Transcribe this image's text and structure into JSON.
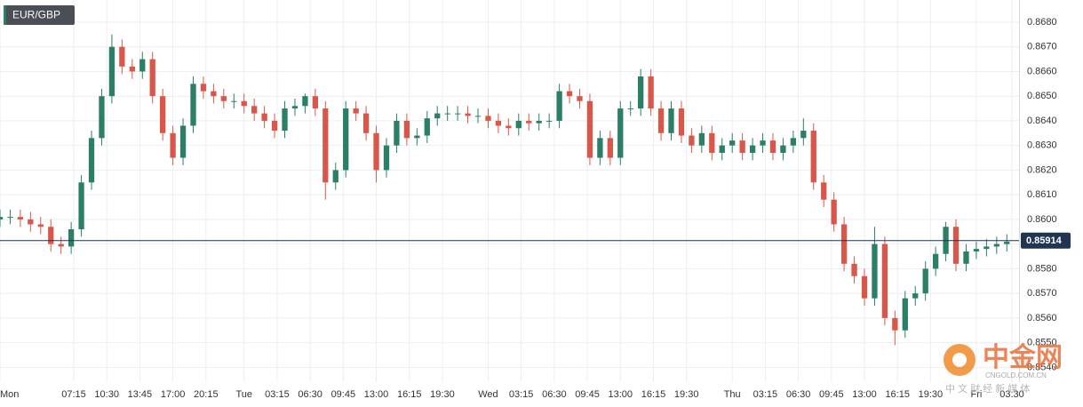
{
  "chart_data": {
    "type": "candlestick",
    "title": "EUR/GBP",
    "x": [
      0,
      1,
      2,
      3,
      4,
      5,
      6,
      7,
      8,
      9,
      10,
      11,
      12,
      13,
      14,
      15,
      16,
      17,
      18,
      19,
      20,
      21,
      22,
      23,
      24,
      25,
      26,
      27,
      28,
      29,
      30,
      31,
      32,
      33,
      34,
      35,
      36,
      37,
      38,
      39,
      40,
      41,
      42,
      43,
      44,
      45,
      46,
      47,
      48,
      49,
      50,
      51,
      52,
      53,
      54,
      55,
      56,
      57,
      58,
      59,
      60,
      61,
      62,
      63,
      64,
      65,
      66,
      67,
      68,
      69,
      70,
      71,
      72,
      73,
      74,
      75,
      76,
      77,
      78,
      79,
      80,
      81,
      82,
      83,
      84,
      85,
      86,
      87,
      88,
      89,
      90,
      91,
      92,
      93,
      94,
      95,
      96,
      97,
      98,
      99
    ],
    "open": [
      0.86,
      0.8601,
      0.8601,
      0.86,
      0.8598,
      0.8597,
      0.859,
      0.8589,
      0.8596,
      0.8615,
      0.8633,
      0.865,
      0.867,
      0.8662,
      0.866,
      0.8665,
      0.865,
      0.8635,
      0.8625,
      0.8638,
      0.8655,
      0.8652,
      0.865,
      0.8648,
      0.8648,
      0.8646,
      0.8643,
      0.864,
      0.8636,
      0.8645,
      0.8646,
      0.865,
      0.8645,
      0.8615,
      0.862,
      0.8645,
      0.8643,
      0.8635,
      0.862,
      0.863,
      0.864,
      0.8633,
      0.8634,
      0.8641,
      0.8643,
      0.8643,
      0.8643,
      0.8642,
      0.8642,
      0.864,
      0.8638,
      0.8637,
      0.864,
      0.8639,
      0.864,
      0.864,
      0.8652,
      0.865,
      0.8648,
      0.8625,
      0.8633,
      0.8625,
      0.8645,
      0.8645,
      0.8658,
      0.8645,
      0.8635,
      0.8645,
      0.8634,
      0.863,
      0.8635,
      0.8627,
      0.863,
      0.8632,
      0.8627,
      0.863,
      0.8632,
      0.8627,
      0.863,
      0.8633,
      0.8636,
      0.8615,
      0.8608,
      0.8598,
      0.8582,
      0.8577,
      0.8568,
      0.859,
      0.856,
      0.8555,
      0.8568,
      0.857,
      0.858,
      0.8586,
      0.8597,
      0.8582,
      0.8587,
      0.8588,
      0.8589,
      0.859
    ],
    "high": [
      0.8604,
      0.8604,
      0.8604,
      0.8603,
      0.8601,
      0.86,
      0.8593,
      0.8599,
      0.8618,
      0.8636,
      0.8653,
      0.8675,
      0.8673,
      0.8665,
      0.8668,
      0.8668,
      0.8653,
      0.8638,
      0.8641,
      0.8658,
      0.8658,
      0.8655,
      0.8653,
      0.8651,
      0.8651,
      0.8649,
      0.8646,
      0.8643,
      0.8648,
      0.8649,
      0.8651,
      0.8653,
      0.8648,
      0.8623,
      0.8648,
      0.8648,
      0.8646,
      0.8638,
      0.8633,
      0.8643,
      0.8643,
      0.8637,
      0.8644,
      0.8646,
      0.8646,
      0.8646,
      0.8646,
      0.8645,
      0.8645,
      0.8643,
      0.8641,
      0.8643,
      0.8643,
      0.8643,
      0.8643,
      0.8655,
      0.8655,
      0.8653,
      0.8651,
      0.8636,
      0.8636,
      0.8648,
      0.8648,
      0.8661,
      0.8661,
      0.8648,
      0.8648,
      0.8648,
      0.8637,
      0.8638,
      0.8638,
      0.8633,
      0.8635,
      0.8635,
      0.8633,
      0.8635,
      0.8635,
      0.8633,
      0.8636,
      0.8641,
      0.8639,
      0.8618,
      0.8611,
      0.8601,
      0.8585,
      0.858,
      0.8597,
      0.8593,
      0.8563,
      0.8571,
      0.8573,
      0.8583,
      0.8589,
      0.8599,
      0.86,
      0.859,
      0.8591,
      0.8592,
      0.8593,
      0.8594
    ],
    "low": [
      0.8597,
      0.8598,
      0.8597,
      0.8595,
      0.8594,
      0.8587,
      0.8586,
      0.8586,
      0.8593,
      0.8612,
      0.863,
      0.8647,
      0.8659,
      0.8657,
      0.8657,
      0.8647,
      0.8632,
      0.8622,
      0.8622,
      0.8635,
      0.8649,
      0.8647,
      0.8645,
      0.8645,
      0.8643,
      0.864,
      0.8637,
      0.8633,
      0.8633,
      0.8642,
      0.8643,
      0.8642,
      0.8608,
      0.8612,
      0.8617,
      0.864,
      0.8632,
      0.8615,
      0.8617,
      0.8627,
      0.863,
      0.863,
      0.8631,
      0.8638,
      0.864,
      0.864,
      0.8639,
      0.8639,
      0.8637,
      0.8635,
      0.8634,
      0.8634,
      0.8636,
      0.8636,
      0.8637,
      0.8637,
      0.8647,
      0.8645,
      0.8622,
      0.8622,
      0.8622,
      0.8622,
      0.8642,
      0.8642,
      0.8642,
      0.8632,
      0.8632,
      0.8631,
      0.8627,
      0.8627,
      0.8624,
      0.8624,
      0.8627,
      0.8624,
      0.8624,
      0.8627,
      0.8624,
      0.8624,
      0.8627,
      0.863,
      0.8612,
      0.8605,
      0.8595,
      0.8579,
      0.8574,
      0.8565,
      0.8565,
      0.8557,
      0.8549,
      0.8552,
      0.8565,
      0.8567,
      0.8577,
      0.8583,
      0.8579,
      0.8579,
      0.8584,
      0.8585,
      0.8586,
      0.8587
    ],
    "close": [
      0.8601,
      0.8601,
      0.86,
      0.8598,
      0.8597,
      0.859,
      0.8589,
      0.8596,
      0.8615,
      0.8633,
      0.865,
      0.867,
      0.8662,
      0.866,
      0.8665,
      0.865,
      0.8635,
      0.8625,
      0.8638,
      0.8655,
      0.8652,
      0.865,
      0.8648,
      0.8648,
      0.8646,
      0.8643,
      0.864,
      0.8636,
      0.8645,
      0.8646,
      0.865,
      0.8645,
      0.8615,
      0.862,
      0.8645,
      0.8643,
      0.8635,
      0.862,
      0.863,
      0.864,
      0.8633,
      0.8634,
      0.8641,
      0.8643,
      0.8643,
      0.8643,
      0.8642,
      0.8642,
      0.864,
      0.8638,
      0.8637,
      0.864,
      0.8639,
      0.864,
      0.864,
      0.8652,
      0.865,
      0.8648,
      0.8625,
      0.8633,
      0.8625,
      0.8645,
      0.8645,
      0.8658,
      0.8645,
      0.8635,
      0.8645,
      0.8634,
      0.863,
      0.8635,
      0.8627,
      0.863,
      0.8632,
      0.8627,
      0.863,
      0.8632,
      0.8627,
      0.863,
      0.8633,
      0.8636,
      0.8615,
      0.8608,
      0.8598,
      0.8582,
      0.8577,
      0.8568,
      0.859,
      0.856,
      0.8555,
      0.8568,
      0.857,
      0.858,
      0.8586,
      0.8597,
      0.8582,
      0.8587,
      0.8588,
      0.8589,
      0.859,
      0.8591
    ],
    "up_color": "#2b7f66",
    "down_color": "#d9574a",
    "last_price": 0.85914,
    "last_price_color": "#1f3552",
    "xlim": [
      0,
      100.2
    ],
    "xticks": [
      {
        "value": 0,
        "label": "Mon"
      },
      {
        "value": 7.25,
        "label": "07:15"
      },
      {
        "value": 10.5,
        "label": "10:30"
      },
      {
        "value": 13.75,
        "label": "13:45"
      },
      {
        "value": 17,
        "label": "17:00"
      },
      {
        "value": 20.25,
        "label": "20:15"
      },
      {
        "value": 24,
        "label": "Tue"
      },
      {
        "value": 27.25,
        "label": "03:15"
      },
      {
        "value": 30.5,
        "label": "06:30"
      },
      {
        "value": 33.75,
        "label": "09:45"
      },
      {
        "value": 37,
        "label": "13:00"
      },
      {
        "value": 40.25,
        "label": "16:15"
      },
      {
        "value": 43.5,
        "label": "19:30"
      },
      {
        "value": 48,
        "label": "Wed"
      },
      {
        "value": 51.25,
        "label": "03:15"
      },
      {
        "value": 54.5,
        "label": "06:30"
      },
      {
        "value": 57.75,
        "label": "09:45"
      },
      {
        "value": 61,
        "label": "13:00"
      },
      {
        "value": 64.25,
        "label": "16:15"
      },
      {
        "value": 67.5,
        "label": "19:30"
      },
      {
        "value": 72,
        "label": "Thu"
      },
      {
        "value": 75.25,
        "label": "03:15"
      },
      {
        "value": 78.5,
        "label": "06:30"
      },
      {
        "value": 81.75,
        "label": "09:45"
      },
      {
        "value": 85,
        "label": "13:00"
      },
      {
        "value": 88.25,
        "label": "16:15"
      },
      {
        "value": 91.5,
        "label": "19:30"
      },
      {
        "value": 96,
        "label": "Fri"
      },
      {
        "value": 99.5,
        "label": "03:30"
      }
    ],
    "ylim": [
      0.8534,
      0.8689
    ],
    "yticks": [
      {
        "value": 0.854,
        "label": "0.8540"
      },
      {
        "value": 0.855,
        "label": "0.8550"
      },
      {
        "value": 0.856,
        "label": "0.8560"
      },
      {
        "value": 0.857,
        "label": "0.8570"
      },
      {
        "value": 0.858,
        "label": "0.8580"
      },
      {
        "value": 0.859,
        "label": "0.8590"
      },
      {
        "value": 0.86,
        "label": "0.8600"
      },
      {
        "value": 0.861,
        "label": "0.8610"
      },
      {
        "value": 0.862,
        "label": "0.8620"
      },
      {
        "value": 0.863,
        "label": "0.8630"
      },
      {
        "value": 0.864,
        "label": "0.8640"
      },
      {
        "value": 0.865,
        "label": "0.8650"
      },
      {
        "value": 0.866,
        "label": "0.8660"
      },
      {
        "value": 0.867,
        "label": "0.8670"
      },
      {
        "value": 0.868,
        "label": "0.8680"
      }
    ],
    "grid": true,
    "watermark": {
      "name": "中金网",
      "site": "CNGOLD.COM.CN",
      "slogan": "中 文 财 经 新 媒 体"
    }
  }
}
